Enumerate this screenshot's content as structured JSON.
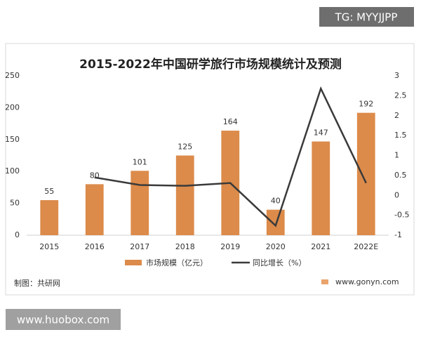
{
  "chart_data": {
    "type": "bar-line",
    "title": "2015-2022年中国研学旅行市场规模统计及预测",
    "categories": [
      "2015",
      "2016",
      "2017",
      "2018",
      "2019",
      "2020",
      "2021",
      "2022E"
    ],
    "series": [
      {
        "name": "市场规模（亿元）",
        "type": "bar",
        "color": "#dc8b4b",
        "values": [
          55,
          80,
          101,
          125,
          164,
          40,
          147,
          192
        ]
      },
      {
        "name": "同比增长（%）",
        "type": "line",
        "axis": "y2",
        "color": "#3a3a3a",
        "values": [
          null,
          0.45,
          0.26,
          0.24,
          0.31,
          -0.76,
          2.68,
          0.31
        ]
      }
    ],
    "ylim": [
      0,
      250
    ],
    "yticks": [
      0,
      50,
      100,
      150,
      200,
      250
    ],
    "y2lim": [
      -1,
      3
    ],
    "y2ticks": [
      -1,
      -0.5,
      0,
      0.5,
      1,
      1.5,
      2,
      2.5,
      3
    ],
    "grid": false,
    "legend": "bottom"
  },
  "source": "制图：共研网",
  "website": "www.gonyn.com",
  "watermarks": [
    "TG: MYYJJPP",
    "www.huobox.com"
  ]
}
